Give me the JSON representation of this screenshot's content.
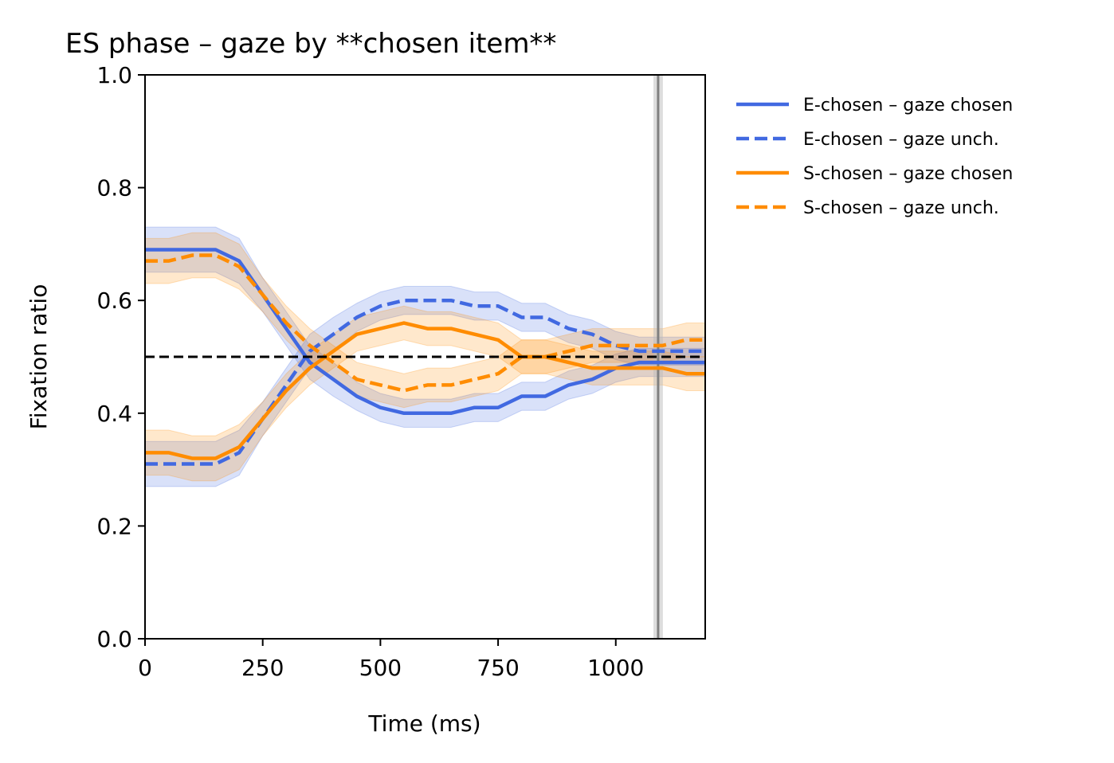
{
  "chart_data": {
    "type": "line",
    "title": "ES phase – gaze by **chosen item**",
    "xlabel": "Time (ms)",
    "ylabel": "Fixation ratio",
    "xlim": [
      0,
      1190
    ],
    "ylim": [
      0,
      1.0
    ],
    "xticks": [
      0,
      250,
      500,
      750,
      1000
    ],
    "xtick_labels": [
      "0",
      "250",
      "500",
      "750",
      "1000"
    ],
    "yticks": [
      0.0,
      0.2,
      0.4,
      0.6,
      0.8,
      1.0
    ],
    "ytick_labels": [
      "0.0",
      "0.2",
      "0.4",
      "0.6",
      "0.8",
      "1.0"
    ],
    "grid": false,
    "legend_position": "outside-right",
    "x": [
      0,
      50,
      100,
      150,
      200,
      250,
      300,
      350,
      400,
      450,
      500,
      550,
      600,
      650,
      700,
      750,
      800,
      850,
      900,
      950,
      1000,
      1050,
      1100,
      1150,
      1190
    ],
    "series": [
      {
        "name": "E-chosen – gaze chosen",
        "color": "#4169e1",
        "dash": "solid",
        "values": [
          0.69,
          0.69,
          0.69,
          0.69,
          0.67,
          0.61,
          0.55,
          0.49,
          0.46,
          0.43,
          0.41,
          0.4,
          0.4,
          0.4,
          0.41,
          0.41,
          0.43,
          0.43,
          0.45,
          0.46,
          0.48,
          0.49,
          0.49,
          0.49,
          0.49
        ],
        "ci": [
          0.04,
          0.04,
          0.04,
          0.04,
          0.04,
          0.03,
          0.03,
          0.03,
          0.03,
          0.025,
          0.025,
          0.025,
          0.025,
          0.025,
          0.025,
          0.025,
          0.025,
          0.025,
          0.025,
          0.025,
          0.025,
          0.025,
          0.025,
          0.025,
          0.025
        ]
      },
      {
        "name": "E-chosen – gaze unch.",
        "color": "#4169e1",
        "dash": "dashed",
        "values": [
          0.31,
          0.31,
          0.31,
          0.31,
          0.33,
          0.39,
          0.45,
          0.51,
          0.54,
          0.57,
          0.59,
          0.6,
          0.6,
          0.6,
          0.59,
          0.59,
          0.57,
          0.57,
          0.55,
          0.54,
          0.52,
          0.51,
          0.51,
          0.51,
          0.51
        ],
        "ci": [
          0.04,
          0.04,
          0.04,
          0.04,
          0.04,
          0.03,
          0.03,
          0.03,
          0.03,
          0.025,
          0.025,
          0.025,
          0.025,
          0.025,
          0.025,
          0.025,
          0.025,
          0.025,
          0.025,
          0.025,
          0.025,
          0.025,
          0.025,
          0.025,
          0.025
        ]
      },
      {
        "name": "S-chosen – gaze chosen",
        "color": "#ff8c00",
        "dash": "solid",
        "values": [
          0.33,
          0.33,
          0.32,
          0.32,
          0.34,
          0.39,
          0.44,
          0.48,
          0.51,
          0.54,
          0.55,
          0.56,
          0.55,
          0.55,
          0.54,
          0.53,
          0.5,
          0.5,
          0.49,
          0.48,
          0.48,
          0.48,
          0.48,
          0.47,
          0.47
        ],
        "ci": [
          0.04,
          0.04,
          0.04,
          0.04,
          0.04,
          0.03,
          0.03,
          0.03,
          0.03,
          0.03,
          0.03,
          0.03,
          0.03,
          0.03,
          0.03,
          0.03,
          0.03,
          0.03,
          0.03,
          0.03,
          0.03,
          0.03,
          0.03,
          0.03,
          0.03
        ]
      },
      {
        "name": "S-chosen – gaze unch.",
        "color": "#ff8c00",
        "dash": "dashed",
        "values": [
          0.67,
          0.67,
          0.68,
          0.68,
          0.66,
          0.61,
          0.56,
          0.52,
          0.49,
          0.46,
          0.45,
          0.44,
          0.45,
          0.45,
          0.46,
          0.47,
          0.5,
          0.5,
          0.51,
          0.52,
          0.52,
          0.52,
          0.52,
          0.53,
          0.53
        ],
        "ci": [
          0.04,
          0.04,
          0.04,
          0.04,
          0.04,
          0.03,
          0.03,
          0.03,
          0.03,
          0.03,
          0.03,
          0.03,
          0.03,
          0.03,
          0.03,
          0.03,
          0.03,
          0.03,
          0.03,
          0.03,
          0.03,
          0.03,
          0.03,
          0.03,
          0.03
        ]
      }
    ],
    "reference_lines": {
      "horizontal_y": 0.5,
      "vertical_dashed_x": 0,
      "vertical_solid_x": 1090,
      "vertical_band": [
        1080,
        1100
      ]
    }
  }
}
